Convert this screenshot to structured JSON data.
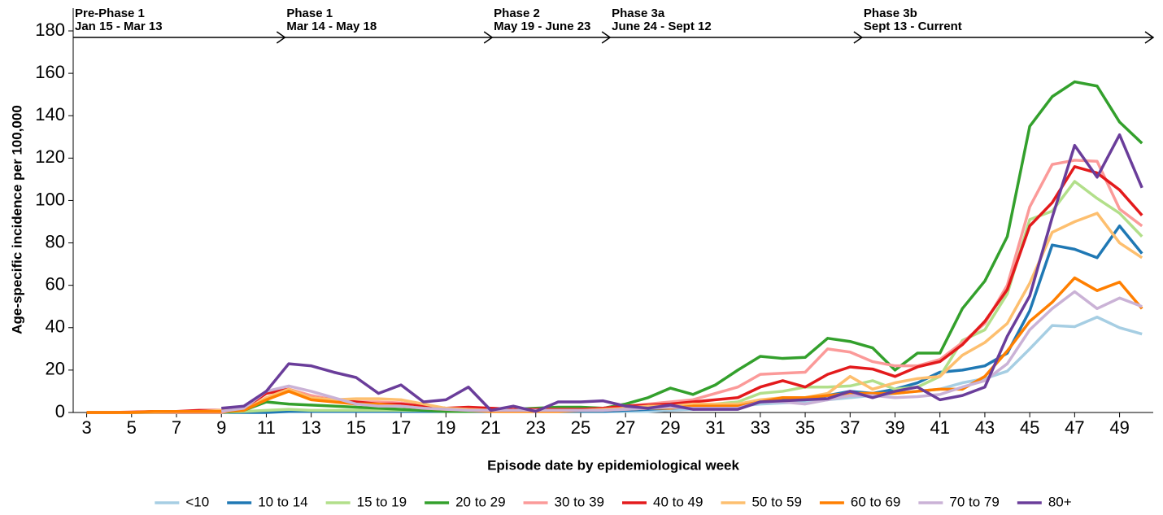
{
  "chart_data": {
    "type": "line",
    "xlabel": "Episode date by epidemiological week",
    "ylabel": "Age-specific incidence per 100,000",
    "x": [
      3,
      4,
      5,
      6,
      7,
      8,
      9,
      10,
      11,
      12,
      13,
      14,
      15,
      16,
      17,
      18,
      19,
      20,
      21,
      22,
      23,
      24,
      25,
      26,
      27,
      28,
      29,
      30,
      31,
      32,
      33,
      34,
      35,
      36,
      37,
      38,
      39,
      40,
      41,
      42,
      43,
      44,
      45,
      46,
      47,
      48,
      49,
      50
    ],
    "xlim": [
      2.4,
      50.5
    ],
    "xticks": [
      3,
      5,
      7,
      9,
      11,
      13,
      15,
      17,
      19,
      21,
      23,
      25,
      27,
      29,
      31,
      33,
      35,
      37,
      39,
      41,
      43,
      45,
      47,
      49
    ],
    "ylim": [
      0,
      180
    ],
    "yticks": [
      0,
      20,
      40,
      60,
      80,
      100,
      120,
      140,
      160,
      180
    ],
    "legend": "bottom",
    "annotations": [
      {
        "title": "Pre-Phase 1",
        "label": "Jan 15 - Mar 13",
        "start": 2.4,
        "end": 11.83
      },
      {
        "title": "Phase 1",
        "label": "Mar 14 - May 18",
        "start": 11.83,
        "end": 21.06
      },
      {
        "title": "Phase 2",
        "label": "May 19 - June 23",
        "start": 21.06,
        "end": 26.31
      },
      {
        "title": "Phase 3a",
        "label": "June 24 - Sept 12",
        "start": 26.31,
        "end": 37.53
      },
      {
        "title": "Phase 3b",
        "label": "Sept 13 - Current",
        "start": 37.53,
        "end": 50.5
      }
    ],
    "series": [
      {
        "name": "<10",
        "color": "#a6cee3",
        "values": [
          0,
          0,
          0,
          0,
          0,
          0,
          0,
          0.5,
          0.5,
          0.5,
          0.5,
          0.5,
          0.5,
          0.5,
          0.5,
          0.5,
          0.5,
          0.5,
          0.5,
          0.5,
          0.5,
          0.5,
          0.5,
          0.5,
          0.5,
          0.5,
          1,
          1.5,
          2,
          3,
          4,
          4.5,
          5,
          6,
          7,
          8,
          9,
          10,
          11,
          14,
          16,
          19.5,
          30,
          41,
          40.5,
          45,
          40,
          37
        ]
      },
      {
        "name": "10 to 14",
        "color": "#1f78b4",
        "values": [
          0,
          0,
          0,
          0,
          0,
          0,
          0,
          0,
          0,
          0.5,
          0.5,
          0.5,
          0.5,
          0.5,
          0.5,
          0.5,
          0.5,
          0.5,
          0.5,
          0.5,
          0.5,
          0.5,
          0.5,
          0.5,
          1,
          1.5,
          2,
          2.5,
          3,
          3,
          5,
          6,
          6,
          8,
          10,
          9,
          11,
          14,
          19,
          20,
          22,
          28,
          48,
          79,
          77,
          73,
          88,
          75
        ]
      },
      {
        "name": "15 to 19",
        "color": "#b2df8a",
        "values": [
          0,
          0,
          0,
          0,
          0,
          0,
          0,
          0.5,
          1,
          1.5,
          1,
          1,
          1,
          1,
          1,
          1,
          1,
          1,
          1,
          1,
          1,
          1,
          1,
          1,
          2,
          3,
          4,
          3,
          4,
          5,
          9,
          10,
          12,
          12,
          12.5,
          15,
          11,
          12,
          17,
          34,
          39,
          56,
          91,
          95,
          109,
          101,
          94,
          83
        ]
      },
      {
        "name": "20 to 29",
        "color": "#33a02c",
        "values": [
          0,
          0,
          0,
          0,
          0,
          0,
          0,
          1,
          5,
          4,
          3.5,
          3,
          2.5,
          2,
          1.5,
          1,
          0.5,
          0.5,
          1,
          1.5,
          2,
          2.5,
          2.5,
          2,
          4,
          7,
          11.5,
          8.5,
          13,
          20,
          26.5,
          25.5,
          26,
          35,
          33.5,
          30.5,
          20,
          28,
          28,
          49,
          62,
          83,
          135,
          149,
          156,
          154,
          137,
          127
        ]
      },
      {
        "name": "30 to 39",
        "color": "#fb9a99",
        "values": [
          0,
          0,
          0,
          0,
          0,
          0,
          0,
          2,
          10,
          11,
          8,
          6,
          5,
          5,
          4.5,
          3,
          2,
          2,
          2,
          1.5,
          1.5,
          1.5,
          1.5,
          2,
          3,
          4,
          5,
          6,
          9,
          12,
          18,
          18.5,
          19,
          30,
          28.5,
          24,
          22,
          22,
          25,
          33,
          42,
          60,
          97,
          117,
          119,
          118.5,
          96,
          88
        ]
      },
      {
        "name": "40 to 49",
        "color": "#e31a1c",
        "values": [
          0,
          0,
          0.2,
          0.5,
          0.5,
          1,
          1,
          2,
          9,
          11,
          7,
          6,
          5,
          4,
          4,
          3,
          2,
          2.5,
          2,
          1.5,
          1.5,
          1.5,
          1.5,
          2,
          3,
          3.5,
          4,
          5,
          6,
          7,
          12,
          15,
          12,
          18,
          21.5,
          20.5,
          17,
          21.5,
          24,
          32,
          43,
          58,
          88,
          99,
          116,
          113,
          105,
          93
        ]
      },
      {
        "name": "50 to 59",
        "color": "#fdbf6f",
        "values": [
          0,
          0,
          0,
          0.2,
          0.5,
          0.5,
          1,
          1,
          7,
          11,
          7,
          6,
          6.5,
          6.5,
          6,
          4,
          2,
          1.5,
          1,
          1,
          1,
          1,
          1,
          1.5,
          2,
          3,
          3,
          4,
          4,
          4,
          6,
          7,
          7,
          9,
          17,
          11,
          14,
          16,
          17,
          27,
          33,
          42,
          61,
          85,
          90,
          94,
          80,
          73
        ]
      },
      {
        "name": "60 to 69",
        "color": "#ff7f00",
        "values": [
          0,
          0,
          0,
          0.5,
          0.5,
          0.5,
          0.5,
          1,
          6,
          10,
          6,
          5,
          4,
          4,
          3,
          2,
          1.5,
          1,
          0.5,
          0.5,
          0.5,
          0.5,
          1,
          1,
          1.5,
          2,
          2,
          3,
          3,
          3,
          5,
          7,
          7,
          8,
          9,
          9,
          9,
          10,
          11,
          11,
          17,
          29,
          43,
          52,
          63.5,
          57.5,
          61.5,
          49
        ]
      },
      {
        "name": "70 to 79",
        "color": "#cab2d6",
        "values": [
          null,
          null,
          null,
          null,
          null,
          null,
          0.5,
          2,
          10,
          12.5,
          10,
          7,
          4,
          3,
          3,
          2,
          1.5,
          1,
          1,
          1,
          1,
          1,
          1,
          1,
          1.5,
          2,
          2.5,
          2,
          2,
          2,
          5,
          5,
          4,
          6,
          8,
          8,
          7,
          7.5,
          8.5,
          12,
          15,
          23,
          39,
          49,
          57,
          49,
          54,
          50
        ]
      },
      {
        "name": "80+",
        "color": "#6a3d9a",
        "values": [
          null,
          null,
          null,
          null,
          null,
          null,
          2,
          3,
          10,
          23,
          22,
          19,
          16.5,
          9,
          13,
          5,
          6,
          12,
          1,
          3,
          0.5,
          5,
          5,
          5.5,
          3,
          2,
          3.5,
          1.5,
          1.5,
          1.5,
          5,
          5.5,
          6,
          6.5,
          10,
          7,
          10,
          12,
          6,
          8,
          12,
          36,
          55,
          92,
          126,
          111,
          131,
          106
        ]
      }
    ]
  }
}
